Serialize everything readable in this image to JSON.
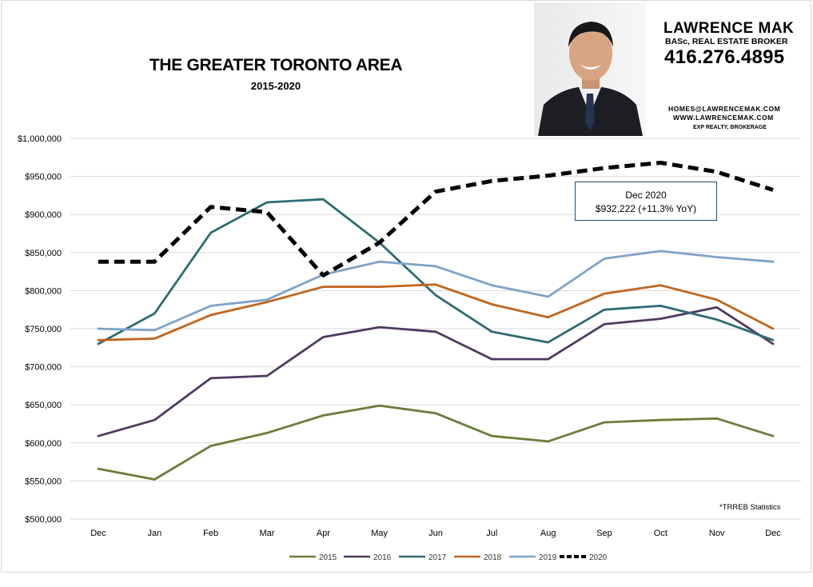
{
  "header": {
    "title": "THE GREATER TORONTO AREA",
    "subtitle": "2015-2020"
  },
  "agent": {
    "name": "LAWRENCE MAK",
    "credentials": "BASc, REAL ESTATE BROKER",
    "phone": "416.276.4895",
    "email": "HOMES@LAWRENCEMAK.COM",
    "website": "WWW.LAWRENCEMAK.COM",
    "brokerage": "EXP REALTY, BROKERAGE"
  },
  "callout": {
    "line1": "Dec 2020",
    "line2": "$932,222  (+11.3% YoY)"
  },
  "source_note": "*TRREB Statistics",
  "colors": {
    "s2015": "#6a7d3a",
    "s2016": "#4f3a5f",
    "s2017": "#2e6b73",
    "s2018": "#c0651f",
    "s2019": "#7ea3c9",
    "s2020": "#000000",
    "grid": "#d9d9d9"
  },
  "chart_data": {
    "type": "line",
    "title": "THE GREATER TORONTO AREA",
    "subtitle": "2015-2020",
    "categories": [
      "Dec",
      "Jan",
      "Feb",
      "Mar",
      "Apr",
      "May",
      "Jun",
      "Jul",
      "Aug",
      "Sep",
      "Oct",
      "Nov",
      "Dec"
    ],
    "y_tick_labels": [
      "$500,000",
      "$550,000",
      "$600,000",
      "$650,000",
      "$700,000",
      "$750,000",
      "$800,000",
      "$850,000",
      "$900,000",
      "$950,000",
      "$1,000,000"
    ],
    "y_ticks": [
      500000,
      550000,
      600000,
      650000,
      700000,
      750000,
      800000,
      850000,
      900000,
      950000,
      1000000
    ],
    "ylim": [
      500000,
      1000000
    ],
    "grid": "horizontal",
    "legend_position": "bottom",
    "series": [
      {
        "name": "2015",
        "color": "#6a7d3a",
        "dashed": false,
        "values": [
          566000,
          552000,
          596000,
          613000,
          636000,
          649000,
          639000,
          609000,
          602000,
          627000,
          630000,
          632000,
          609000
        ]
      },
      {
        "name": "2016",
        "color": "#4f3a5f",
        "dashed": false,
        "values": [
          609000,
          630000,
          685000,
          688000,
          739000,
          752000,
          746000,
          710000,
          710000,
          756000,
          763000,
          778000,
          730000
        ]
      },
      {
        "name": "2017",
        "color": "#2e6b73",
        "dashed": false,
        "values": [
          730000,
          770000,
          876000,
          916000,
          920000,
          863000,
          794000,
          746000,
          732000,
          775000,
          780000,
          762000,
          735000
        ]
      },
      {
        "name": "2018",
        "color": "#c0651f",
        "dashed": false,
        "values": [
          735000,
          737000,
          768000,
          785000,
          805000,
          805000,
          808000,
          782000,
          765000,
          796000,
          807000,
          788000,
          750000
        ]
      },
      {
        "name": "2019",
        "color": "#7ea3c9",
        "dashed": false,
        "values": [
          750000,
          748000,
          780000,
          788000,
          821000,
          838000,
          832000,
          807000,
          792000,
          842000,
          852000,
          844000,
          838000
        ]
      },
      {
        "name": "2020",
        "color": "#000000",
        "dashed": true,
        "values": [
          838000,
          838000,
          910000,
          903000,
          820000,
          863000,
          930000,
          944000,
          951000,
          961000,
          968000,
          956000,
          932222
        ]
      }
    ]
  }
}
